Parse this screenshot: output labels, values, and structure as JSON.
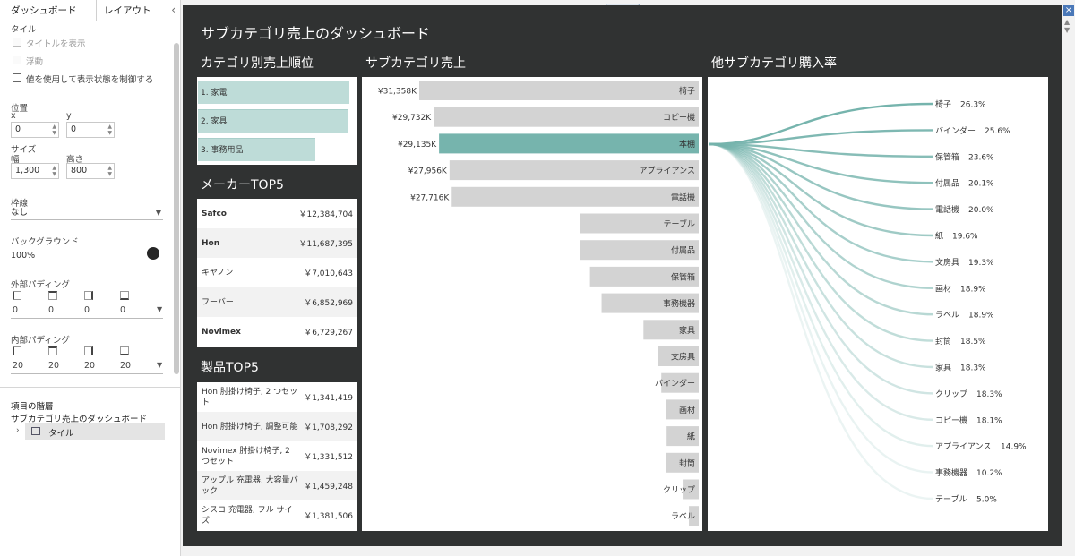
{
  "panel": {
    "tabs": [
      "ダッシュボード",
      "レイアウト"
    ],
    "collapse_icon": "chevron-left-icon",
    "tile_label": "タイル",
    "show_title": "タイトルを表示",
    "floating": "浮動",
    "control_visibility": "値を使用して表示状態を制御する",
    "position_label": "位置",
    "x_label": "x",
    "y_label": "y",
    "x_value": "0",
    "y_value": "0",
    "size_label": "サイズ",
    "width_label": "幅",
    "height_label": "高さ",
    "width_value": "1,300",
    "height_value": "800",
    "border_label": "枠線",
    "border_value": "なし",
    "background_label": "バックグラウンド",
    "background_value": "100%",
    "background_color": "#262626",
    "outer_padding_label": "外部パディング",
    "outer_padding": [
      "0",
      "0",
      "0",
      "0"
    ],
    "inner_padding_label": "内部パディング",
    "inner_padding": [
      "20",
      "20",
      "20",
      "20"
    ],
    "hierarchy_label": "項目の階層",
    "hierarchy_root": "サブカテゴリ売上のダッシュボード",
    "hierarchy_item": "タイル"
  },
  "dashboard": {
    "title": "サブカテゴリ売上のダッシュボード",
    "category_title": "カテゴリ別売上順位",
    "categories": [
      {
        "label": "1. 家電",
        "value": 1.0
      },
      {
        "label": "2. 家具",
        "value": 0.986
      },
      {
        "label": "3. 事務用品",
        "value": 0.77
      }
    ],
    "maker_title": "メーカーTOP5",
    "makers": [
      {
        "name": "Safco",
        "value": "￥12,384,704"
      },
      {
        "name": "Hon",
        "value": "￥11,687,395"
      },
      {
        "name": "キヤノン",
        "value": "￥7,010,643"
      },
      {
        "name": "フーバー",
        "value": "￥6,852,969"
      },
      {
        "name": "Novimex",
        "value": "￥6,729,267"
      }
    ],
    "product_title": "製品TOP5",
    "products": [
      {
        "name": "Hon 肘掛け椅子, 2 つセット",
        "value": "￥1,341,419"
      },
      {
        "name": "Hon 肘掛け椅子, 調整可能",
        "value": "￥1,708,292"
      },
      {
        "name": "Novimex 肘掛け椅子, 2 つセット",
        "value": "￥1,331,512"
      },
      {
        "name": "アップル 充電器, 大容量パック",
        "value": "￥1,459,248"
      },
      {
        "name": "シスコ 充電器, フル サイズ",
        "value": "￥1,381,506"
      }
    ],
    "subcat_title": "サブカテゴリ売上",
    "purchase_title": "他サブカテゴリ購入率"
  },
  "chart_data": [
    {
      "type": "bar",
      "title": "サブカテゴリ売上",
      "orientation": "horizontal",
      "categories": [
        "椅子",
        "コピー機",
        "本棚",
        "アプライアンス",
        "電話機",
        "テーブル",
        "付属品",
        "保管箱",
        "事務機器",
        "家具",
        "文房具",
        "バインダー",
        "画材",
        "紙",
        "封筒",
        "クリップ",
        "ラベル"
      ],
      "values": [
        31358,
        29732,
        29135,
        27956,
        27716,
        13300,
        13300,
        12200,
        10900,
        6200,
        4600,
        4200,
        3700,
        3600,
        3700,
        1800,
        1100
      ],
      "value_labels": [
        "¥31,358K",
        "¥29,732K",
        "¥29,135K",
        "¥27,956K",
        "¥27,716K",
        "",
        "",
        "",
        "",
        "",
        "",
        "",
        "",
        "",
        "",
        "",
        ""
      ],
      "highlight": "本棚",
      "bar_color": "#d3d3d3",
      "highlight_color": "#76b4ad"
    },
    {
      "type": "line",
      "title": "他サブカテゴリ購入率",
      "categories": [
        "椅子",
        "バインダー",
        "保管箱",
        "付属品",
        "電話機",
        "紙",
        "文房具",
        "画材",
        "ラベル",
        "封筒",
        "家具",
        "クリップ",
        "コピー機",
        "アプライアンス",
        "事務機器",
        "テーブル"
      ],
      "values": [
        26.3,
        25.6,
        23.6,
        20.1,
        20.0,
        19.6,
        19.3,
        18.9,
        18.9,
        18.5,
        18.3,
        18.3,
        18.1,
        14.9,
        10.2,
        5.0
      ],
      "value_labels": [
        "26.3%",
        "25.6%",
        "23.6%",
        "20.1%",
        "20.0%",
        "19.6%",
        "19.3%",
        "18.9%",
        "18.9%",
        "18.5%",
        "18.3%",
        "18.3%",
        "18.1%",
        "14.9%",
        "10.2%",
        "5.0%"
      ],
      "line_color": "#76b4ad"
    }
  ]
}
